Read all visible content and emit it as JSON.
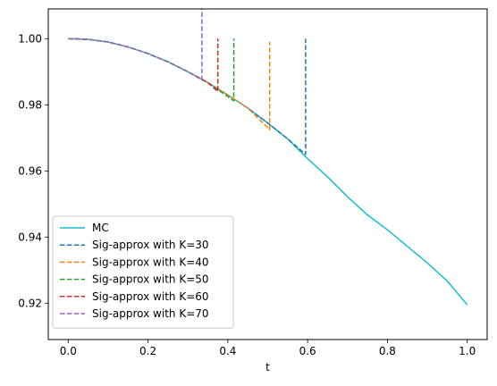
{
  "chart_data": {
    "type": "line",
    "title": "",
    "xlabel": "t",
    "ylabel": "",
    "xlim": [
      -0.05,
      1.05
    ],
    "ylim": [
      0.909,
      1.009
    ],
    "xticks": [
      0.0,
      0.2,
      0.4,
      0.6,
      0.8,
      1.0
    ],
    "xtick_labels": [
      "0.0",
      "0.2",
      "0.4",
      "0.6",
      "0.8",
      "1.0"
    ],
    "yticks": [
      0.92,
      0.94,
      0.96,
      0.98,
      1.0
    ],
    "ytick_labels": [
      "0.92",
      "0.94",
      "0.96",
      "0.98",
      "1.00"
    ],
    "grid": false,
    "legend_position": "lower-left",
    "series": [
      {
        "name": "MC",
        "color": "#17becf",
        "style": "solid",
        "x": [
          0.0,
          0.05,
          0.1,
          0.15,
          0.2,
          0.25,
          0.3,
          0.35,
          0.4,
          0.45,
          0.5,
          0.55,
          0.6,
          0.65,
          0.7,
          0.75,
          0.8,
          0.85,
          0.9,
          0.95,
          1.0
        ],
        "y": [
          1.0,
          0.9998,
          0.999,
          0.9975,
          0.9955,
          0.993,
          0.99,
          0.9867,
          0.983,
          0.979,
          0.9745,
          0.9697,
          0.9637,
          0.9582,
          0.9522,
          0.9467,
          0.9422,
          0.9372,
          0.9322,
          0.9267,
          0.9195
        ]
      },
      {
        "name": "Sig-approx with K=30",
        "color": "#1f77b4",
        "style": "dashed",
        "x": [
          0.0,
          0.05,
          0.1,
          0.15,
          0.2,
          0.25,
          0.3,
          0.35,
          0.4,
          0.45,
          0.5,
          0.55,
          0.595,
          0.595
        ],
        "y": [
          1.0,
          0.9998,
          0.999,
          0.9975,
          0.9955,
          0.993,
          0.99,
          0.9867,
          0.983,
          0.979,
          0.9745,
          0.9697,
          0.965,
          1.0
        ]
      },
      {
        "name": "Sig-approx with K=40",
        "color": "#ff7f0e",
        "style": "dashed",
        "x": [
          0.0,
          0.05,
          0.1,
          0.15,
          0.2,
          0.25,
          0.3,
          0.35,
          0.4,
          0.45,
          0.505,
          0.505
        ],
        "y": [
          1.0,
          0.9998,
          0.999,
          0.9975,
          0.9955,
          0.993,
          0.99,
          0.9867,
          0.983,
          0.979,
          0.9725,
          0.999
        ]
      },
      {
        "name": "Sig-approx with K=50",
        "color": "#2ca02c",
        "style": "dashed",
        "x": [
          0.0,
          0.05,
          0.1,
          0.15,
          0.2,
          0.25,
          0.3,
          0.35,
          0.415,
          0.415
        ],
        "y": [
          1.0,
          0.9998,
          0.999,
          0.9975,
          0.9955,
          0.993,
          0.99,
          0.9867,
          0.9812,
          1.0
        ]
      },
      {
        "name": "Sig-approx with K=60",
        "color": "#d62728",
        "style": "dashed",
        "x": [
          0.0,
          0.05,
          0.1,
          0.15,
          0.2,
          0.25,
          0.3,
          0.35,
          0.375,
          0.375
        ],
        "y": [
          1.0,
          0.9998,
          0.999,
          0.9975,
          0.9955,
          0.993,
          0.99,
          0.9867,
          0.984,
          1.0
        ]
      },
      {
        "name": "Sig-approx with K=70",
        "color": "#9467bd",
        "style": "dashed",
        "x": [
          0.0,
          0.05,
          0.1,
          0.15,
          0.2,
          0.25,
          0.3,
          0.335,
          0.335
        ],
        "y": [
          1.0,
          0.9998,
          0.999,
          0.9975,
          0.9955,
          0.993,
          0.99,
          0.9875,
          1.009
        ]
      }
    ]
  }
}
